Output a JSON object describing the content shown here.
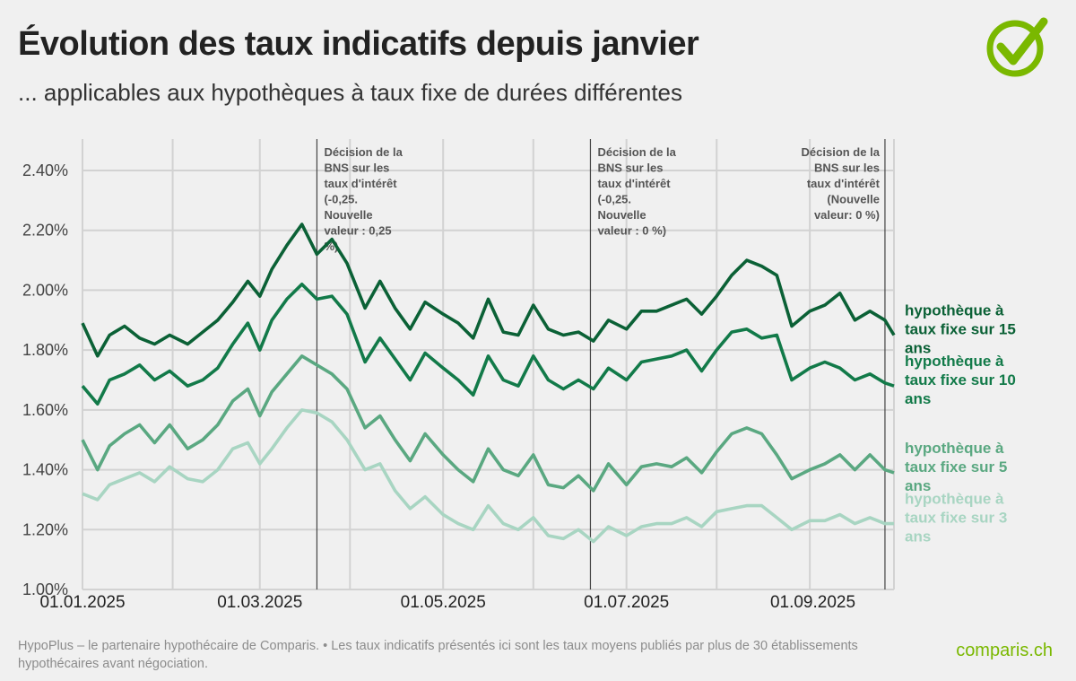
{
  "title": "Évolution des taux indicatifs depuis janvier",
  "subtitle": "... applicables aux hypothèques à taux fixe de durées différentes",
  "footnote": "HypoPlus – le partenaire hypothécaire de Comparis. • Les taux indicatifs présentés ici sont les taux moyens publiés par plus de 30 établissements hypothécaires avant négociation.",
  "brand": "comparis.ch",
  "logo_icon": "checkmark-circle-icon",
  "colors": {
    "y15": "#0b6136",
    "y10": "#127a49",
    "y5": "#5aa881",
    "y3": "#a8d5c2",
    "brand": "#7ab800"
  },
  "chart_data": {
    "type": "line",
    "title": "Évolution des taux indicatifs depuis janvier",
    "x_range": [
      "2025-01-01",
      "2025-09-28"
    ],
    "x_ticks": [
      {
        "date": "2025-01-01",
        "label": "01.01.2025"
      },
      {
        "date": "2025-03-01",
        "label": "01.03.2025"
      },
      {
        "date": "2025-05-01",
        "label": "01.05.2025"
      },
      {
        "date": "2025-07-01",
        "label": "01.07.2025"
      },
      {
        "date": "2025-09-01",
        "label": "01.09.2025"
      }
    ],
    "ylim": [
      1.0,
      2.4
    ],
    "y_ticks": [
      {
        "value": 1.0,
        "label": "1.00%"
      },
      {
        "value": 1.2,
        "label": "1.20%"
      },
      {
        "value": 1.4,
        "label": "1.40%"
      },
      {
        "value": 1.6,
        "label": "1.60%"
      },
      {
        "value": 1.8,
        "label": "1.80%"
      },
      {
        "value": 2.0,
        "label": "2.00%"
      },
      {
        "value": 2.2,
        "label": "2.20%"
      },
      {
        "value": 2.4,
        "label": "2.40%"
      }
    ],
    "grid": true,
    "legend": "right",
    "annotations": [
      {
        "date": "2025-03-20",
        "align": "left",
        "lines": [
          "Décision de la",
          "BNS sur les",
          "taux d'intérêt",
          "(-0,25.",
          "Nouvelle",
          "valeur : 0,25",
          "%)"
        ]
      },
      {
        "date": "2025-06-19",
        "align": "left",
        "lines": [
          "Décision de la",
          "BNS sur les",
          "taux d'intérêt",
          "(-0,25.",
          "Nouvelle",
          "valeur : 0 %)"
        ]
      },
      {
        "date": "2025-09-25",
        "align": "right",
        "lines": [
          "Décision de la",
          "BNS sur les",
          "taux d'intérêt",
          "(Nouvelle",
          "valeur: 0 %)"
        ]
      }
    ],
    "series": [
      {
        "name": "hypothèque à taux fixe sur 15 ans",
        "label_lines": [
          "hypothèque à",
          "taux fixe sur 15",
          "ans"
        ],
        "color_key": "y15",
        "x": [
          "2025-01-01",
          "2025-01-06",
          "2025-01-10",
          "2025-01-15",
          "2025-01-20",
          "2025-01-25",
          "2025-01-30",
          "2025-02-05",
          "2025-02-10",
          "2025-02-15",
          "2025-02-20",
          "2025-02-25",
          "2025-03-01",
          "2025-03-05",
          "2025-03-10",
          "2025-03-15",
          "2025-03-20",
          "2025-03-25",
          "2025-03-30",
          "2025-04-05",
          "2025-04-10",
          "2025-04-15",
          "2025-04-20",
          "2025-04-25",
          "2025-05-01",
          "2025-05-06",
          "2025-05-11",
          "2025-05-16",
          "2025-05-21",
          "2025-05-26",
          "2025-05-31",
          "2025-06-05",
          "2025-06-10",
          "2025-06-15",
          "2025-06-20",
          "2025-06-25",
          "2025-07-01",
          "2025-07-06",
          "2025-07-11",
          "2025-07-16",
          "2025-07-21",
          "2025-07-26",
          "2025-07-31",
          "2025-08-05",
          "2025-08-10",
          "2025-08-15",
          "2025-08-20",
          "2025-08-25",
          "2025-08-31",
          "2025-09-05",
          "2025-09-10",
          "2025-09-15",
          "2025-09-20",
          "2025-09-25",
          "2025-09-28"
        ],
        "y": [
          1.89,
          1.78,
          1.85,
          1.88,
          1.84,
          1.82,
          1.85,
          1.82,
          1.86,
          1.9,
          1.96,
          2.03,
          1.98,
          2.07,
          2.15,
          2.22,
          2.12,
          2.17,
          2.09,
          1.94,
          2.03,
          1.94,
          1.87,
          1.96,
          1.92,
          1.89,
          1.84,
          1.97,
          1.86,
          1.85,
          1.95,
          1.87,
          1.85,
          1.86,
          1.83,
          1.9,
          1.87,
          1.93,
          1.93,
          1.95,
          1.97,
          1.92,
          1.98,
          2.05,
          2.1,
          2.08,
          2.05,
          1.88,
          1.93,
          1.95,
          1.99,
          1.9,
          1.93,
          1.9,
          1.85
        ]
      },
      {
        "name": "hypothèque à taux fixe sur 10 ans",
        "label_lines": [
          "hypothèque à",
          "taux fixe sur 10",
          "ans"
        ],
        "color_key": "y10",
        "x": [
          "2025-01-01",
          "2025-01-06",
          "2025-01-10",
          "2025-01-15",
          "2025-01-20",
          "2025-01-25",
          "2025-01-30",
          "2025-02-05",
          "2025-02-10",
          "2025-02-15",
          "2025-02-20",
          "2025-02-25",
          "2025-03-01",
          "2025-03-05",
          "2025-03-10",
          "2025-03-15",
          "2025-03-20",
          "2025-03-25",
          "2025-03-30",
          "2025-04-05",
          "2025-04-10",
          "2025-04-15",
          "2025-04-20",
          "2025-04-25",
          "2025-05-01",
          "2025-05-06",
          "2025-05-11",
          "2025-05-16",
          "2025-05-21",
          "2025-05-26",
          "2025-05-31",
          "2025-06-05",
          "2025-06-10",
          "2025-06-15",
          "2025-06-20",
          "2025-06-25",
          "2025-07-01",
          "2025-07-06",
          "2025-07-11",
          "2025-07-16",
          "2025-07-21",
          "2025-07-26",
          "2025-07-31",
          "2025-08-05",
          "2025-08-10",
          "2025-08-15",
          "2025-08-20",
          "2025-08-25",
          "2025-08-31",
          "2025-09-05",
          "2025-09-10",
          "2025-09-15",
          "2025-09-20",
          "2025-09-25",
          "2025-09-28"
        ],
        "y": [
          1.68,
          1.62,
          1.7,
          1.72,
          1.75,
          1.7,
          1.73,
          1.68,
          1.7,
          1.74,
          1.82,
          1.89,
          1.8,
          1.9,
          1.97,
          2.02,
          1.97,
          1.98,
          1.92,
          1.76,
          1.84,
          1.77,
          1.7,
          1.79,
          1.74,
          1.7,
          1.65,
          1.78,
          1.7,
          1.68,
          1.78,
          1.7,
          1.67,
          1.7,
          1.67,
          1.74,
          1.7,
          1.76,
          1.77,
          1.78,
          1.8,
          1.73,
          1.8,
          1.86,
          1.87,
          1.84,
          1.85,
          1.7,
          1.74,
          1.76,
          1.74,
          1.7,
          1.72,
          1.69,
          1.68
        ]
      },
      {
        "name": "hypothèque à taux fixe sur 5 ans",
        "label_lines": [
          "hypothèque à",
          "taux fixe sur 5",
          "ans"
        ],
        "color_key": "y5",
        "x": [
          "2025-01-01",
          "2025-01-06",
          "2025-01-10",
          "2025-01-15",
          "2025-01-20",
          "2025-01-25",
          "2025-01-30",
          "2025-02-05",
          "2025-02-10",
          "2025-02-15",
          "2025-02-20",
          "2025-02-25",
          "2025-03-01",
          "2025-03-05",
          "2025-03-10",
          "2025-03-15",
          "2025-03-20",
          "2025-03-25",
          "2025-03-30",
          "2025-04-05",
          "2025-04-10",
          "2025-04-15",
          "2025-04-20",
          "2025-04-25",
          "2025-05-01",
          "2025-05-06",
          "2025-05-11",
          "2025-05-16",
          "2025-05-21",
          "2025-05-26",
          "2025-05-31",
          "2025-06-05",
          "2025-06-10",
          "2025-06-15",
          "2025-06-20",
          "2025-06-25",
          "2025-07-01",
          "2025-07-06",
          "2025-07-11",
          "2025-07-16",
          "2025-07-21",
          "2025-07-26",
          "2025-07-31",
          "2025-08-05",
          "2025-08-10",
          "2025-08-15",
          "2025-08-20",
          "2025-08-25",
          "2025-08-31",
          "2025-09-05",
          "2025-09-10",
          "2025-09-15",
          "2025-09-20",
          "2025-09-25",
          "2025-09-28"
        ],
        "y": [
          1.5,
          1.4,
          1.48,
          1.52,
          1.55,
          1.49,
          1.55,
          1.47,
          1.5,
          1.55,
          1.63,
          1.67,
          1.58,
          1.66,
          1.72,
          1.78,
          1.75,
          1.72,
          1.67,
          1.54,
          1.58,
          1.5,
          1.43,
          1.52,
          1.45,
          1.4,
          1.36,
          1.47,
          1.4,
          1.38,
          1.45,
          1.35,
          1.34,
          1.38,
          1.33,
          1.42,
          1.35,
          1.41,
          1.42,
          1.41,
          1.44,
          1.39,
          1.46,
          1.52,
          1.54,
          1.52,
          1.45,
          1.37,
          1.4,
          1.42,
          1.45,
          1.4,
          1.45,
          1.4,
          1.39
        ]
      },
      {
        "name": "hypothèque à taux fixe sur 3 ans",
        "label_lines": [
          "hypothèque à",
          "taux fixe sur 3",
          "ans"
        ],
        "color_key": "y3",
        "x": [
          "2025-01-01",
          "2025-01-06",
          "2025-01-10",
          "2025-01-15",
          "2025-01-20",
          "2025-01-25",
          "2025-01-30",
          "2025-02-05",
          "2025-02-10",
          "2025-02-15",
          "2025-02-20",
          "2025-02-25",
          "2025-03-01",
          "2025-03-05",
          "2025-03-10",
          "2025-03-15",
          "2025-03-20",
          "2025-03-25",
          "2025-03-30",
          "2025-04-05",
          "2025-04-10",
          "2025-04-15",
          "2025-04-20",
          "2025-04-25",
          "2025-05-01",
          "2025-05-06",
          "2025-05-11",
          "2025-05-16",
          "2025-05-21",
          "2025-05-26",
          "2025-05-31",
          "2025-06-05",
          "2025-06-10",
          "2025-06-15",
          "2025-06-20",
          "2025-06-25",
          "2025-07-01",
          "2025-07-06",
          "2025-07-11",
          "2025-07-16",
          "2025-07-21",
          "2025-07-26",
          "2025-07-31",
          "2025-08-05",
          "2025-08-10",
          "2025-08-15",
          "2025-08-20",
          "2025-08-25",
          "2025-08-31",
          "2025-09-05",
          "2025-09-10",
          "2025-09-15",
          "2025-09-20",
          "2025-09-25",
          "2025-09-28"
        ],
        "y": [
          1.32,
          1.3,
          1.35,
          1.37,
          1.39,
          1.36,
          1.41,
          1.37,
          1.36,
          1.4,
          1.47,
          1.49,
          1.42,
          1.47,
          1.54,
          1.6,
          1.59,
          1.56,
          1.5,
          1.4,
          1.42,
          1.33,
          1.27,
          1.31,
          1.25,
          1.22,
          1.2,
          1.28,
          1.22,
          1.2,
          1.24,
          1.18,
          1.17,
          1.2,
          1.16,
          1.21,
          1.18,
          1.21,
          1.22,
          1.22,
          1.24,
          1.21,
          1.26,
          1.27,
          1.28,
          1.28,
          1.24,
          1.2,
          1.23,
          1.23,
          1.25,
          1.22,
          1.24,
          1.22,
          1.22
        ]
      }
    ]
  }
}
